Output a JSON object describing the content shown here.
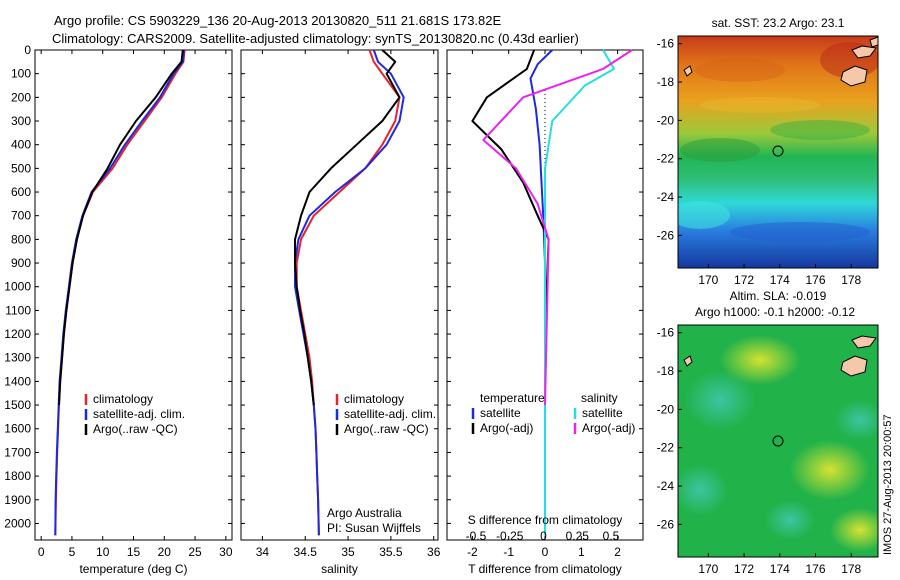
{
  "header": {
    "line1": "Argo profile: CS 5903229_136 20-Aug-2013 20130820_511 21.681S 173.82E",
    "line2": "Climatology: CARS2009. Satellite-adjusted climatology: synTS_20130820.nc (0.43d earlier)"
  },
  "side_text": "IMOS 27-Aug-2013 20:00:57",
  "colors": {
    "climatology": "#e8212e",
    "satellite": "#1b2ae0",
    "argo": "#000000",
    "sat_salinity": "#22e0e0",
    "argo_salinity": "#ee22ee"
  },
  "chart_data": [
    {
      "id": "temperature",
      "type": "line",
      "xlabel": "temperature (deg C)",
      "ylabel": "",
      "xlim": [
        -1,
        31
      ],
      "ylim": [
        2070,
        0
      ],
      "xticks": [
        "0",
        "5",
        "10",
        "15",
        "20",
        "25",
        "30"
      ],
      "xtick_values": [
        0,
        5,
        10,
        15,
        20,
        25,
        30
      ],
      "yticks": [
        "0",
        "100",
        "200",
        "300",
        "400",
        "500",
        "600",
        "700",
        "800",
        "900",
        "1000",
        "1100",
        "1200",
        "1300",
        "1400",
        "1500",
        "1600",
        "1700",
        "1800",
        "1900",
        "2000"
      ],
      "ytick_values": [
        0,
        100,
        200,
        300,
        400,
        500,
        600,
        700,
        800,
        900,
        1000,
        1100,
        1200,
        1300,
        1400,
        1500,
        1600,
        1700,
        1800,
        1900,
        2000
      ],
      "legend": [
        "climatology",
        "satellite-adj. clim.",
        "Argo(..raw -QC)"
      ],
      "series": [
        {
          "name": "climatology",
          "color": "#e8212e",
          "x": [
            23.3,
            23.1,
            21.8,
            19.6,
            16.8,
            14.0,
            11.6,
            8.4,
            6.8,
            5.8,
            5.1,
            4.6,
            4.1,
            3.7,
            3.4,
            3.1,
            2.9,
            2.75,
            2.6,
            2.5,
            2.4,
            2.3
          ],
          "y": [
            0,
            50,
            100,
            200,
            300,
            400,
            500,
            600,
            700,
            800,
            900,
            1000,
            1100,
            1200,
            1300,
            1400,
            1500,
            1600,
            1700,
            1800,
            1900,
            2050
          ]
        },
        {
          "name": "satellite-adj. clim.",
          "color": "#1b2ae0",
          "x": [
            23.2,
            23.0,
            21.5,
            19.3,
            16.4,
            13.6,
            11.2,
            8.2,
            6.7,
            5.7,
            5.0,
            4.5,
            4.0,
            3.6,
            3.3,
            3.0,
            2.85,
            2.7,
            2.55,
            2.45,
            2.35,
            2.3
          ],
          "y": [
            0,
            50,
            100,
            200,
            300,
            400,
            500,
            600,
            700,
            800,
            900,
            1000,
            1100,
            1200,
            1300,
            1400,
            1500,
            1600,
            1700,
            1800,
            1900,
            2050
          ]
        },
        {
          "name": "Argo(..raw -QC)",
          "color": "#000000",
          "x": [
            23.0,
            22.8,
            21.2,
            18.6,
            15.4,
            12.8,
            10.8,
            8.3,
            6.8,
            5.8,
            5.1,
            4.6,
            4.1,
            3.7,
            3.4,
            3.1,
            2.9
          ],
          "y": [
            0,
            50,
            100,
            200,
            300,
            400,
            500,
            600,
            700,
            800,
            900,
            1000,
            1100,
            1200,
            1300,
            1400,
            1500
          ]
        }
      ]
    },
    {
      "id": "salinity",
      "type": "line",
      "xlabel": "salinity",
      "xlim": [
        33.75,
        36.05
      ],
      "ylim": [
        2070,
        0
      ],
      "xticks": [
        "34",
        "34.5",
        "35",
        "35.5",
        "36"
      ],
      "xtick_values": [
        34,
        34.5,
        35,
        35.5,
        36
      ],
      "legend": [
        "climatology",
        "satellite-adj. clim.",
        "Argo(..raw -QC)"
      ],
      "annotation": [
        "Argo Australia",
        "PI: Susan Wijffels"
      ],
      "series": [
        {
          "name": "climatology",
          "color": "#e8212e",
          "x": [
            35.25,
            35.3,
            35.4,
            35.6,
            35.55,
            35.4,
            35.2,
            34.9,
            34.6,
            34.45,
            34.4,
            34.4,
            34.45,
            34.5,
            34.55,
            34.58,
            34.6,
            34.62,
            34.63,
            34.64,
            34.65,
            34.66
          ],
          "y": [
            0,
            50,
            100,
            200,
            300,
            400,
            500,
            600,
            700,
            800,
            900,
            1000,
            1100,
            1200,
            1300,
            1400,
            1500,
            1600,
            1700,
            1800,
            1900,
            2050
          ]
        },
        {
          "name": "satellite-adj. clim.",
          "color": "#1b2ae0",
          "x": [
            35.3,
            35.35,
            35.5,
            35.65,
            35.6,
            35.45,
            35.2,
            34.85,
            34.55,
            34.42,
            34.38,
            34.38,
            34.43,
            34.48,
            34.53,
            34.57,
            34.6,
            34.62,
            34.63,
            34.64,
            34.65,
            34.66
          ],
          "y": [
            0,
            50,
            100,
            200,
            300,
            400,
            500,
            600,
            700,
            800,
            900,
            1000,
            1100,
            1200,
            1300,
            1400,
            1500,
            1600,
            1700,
            1800,
            1900,
            2050
          ]
        },
        {
          "name": "Argo(..raw -QC)",
          "color": "#000000",
          "x": [
            35.4,
            35.55,
            35.45,
            35.6,
            35.4,
            35.1,
            34.8,
            34.55,
            34.45,
            34.38,
            34.38,
            34.4,
            34.44,
            34.49,
            34.53,
            34.57,
            34.6
          ],
          "y": [
            0,
            50,
            100,
            200,
            300,
            400,
            500,
            600,
            700,
            800,
            900,
            1000,
            1100,
            1200,
            1300,
            1400,
            1500
          ]
        }
      ]
    },
    {
      "id": "difference",
      "type": "line",
      "xlabel": "T difference from climatology",
      "xlabel_top": "S difference from climatology",
      "xlim": [
        -2.7,
        2.7
      ],
      "ylim": [
        2070,
        0
      ],
      "xticks": [
        "-2",
        "-1",
        "0",
        "1",
        "2"
      ],
      "xtick_values": [
        -2,
        -1,
        0,
        1,
        2
      ],
      "sticks": [
        "-0.5",
        "-0.25",
        "0",
        "0.25",
        "0.5"
      ],
      "stick_values": [
        -0.5,
        -0.25,
        0,
        0.25,
        0.5
      ],
      "legend_left": [
        "temperature",
        "satellite",
        "Argo(-adj)"
      ],
      "legend_right": [
        "salinity",
        "satellite",
        "Argo(-adj)"
      ],
      "series": [
        {
          "name": "satellite",
          "color": "#1b2ae0",
          "x": [
            0.2,
            -0.2,
            -0.4,
            -0.25,
            -0.15,
            -0.1,
            -0.05,
            0,
            0,
            0
          ],
          "y": [
            0,
            60,
            120,
            250,
            400,
            550,
            700,
            900,
            1200,
            2050
          ]
        },
        {
          "name": "Argo(-adj)",
          "color": "#000000",
          "x": [
            -0.3,
            -0.5,
            -1.6,
            -2.0,
            -1.2,
            -0.6,
            -0.2,
            0.1,
            0,
            0
          ],
          "y": [
            0,
            80,
            200,
            300,
            420,
            560,
            700,
            800,
            1200,
            1500
          ]
        },
        {
          "name": "satellite",
          "color": "#22e0e0",
          "x": [
            1.6,
            1.9,
            1.1,
            0.2,
            0.0,
            0.0,
            0.0,
            0.0
          ],
          "y": [
            0,
            80,
            150,
            300,
            500,
            800,
            1200,
            2050
          ]
        },
        {
          "name": "Argo(-adj)",
          "color": "#ee22ee",
          "x": [
            2.4,
            1.6,
            -0.6,
            -1.7,
            -0.8,
            -0.2,
            0.1,
            0.0
          ],
          "y": [
            0,
            80,
            200,
            380,
            500,
            650,
            800,
            1500
          ]
        }
      ]
    },
    {
      "id": "sst_map",
      "type": "heatmap",
      "title": "sat. SST: 23.2  Argo: 23.1",
      "xlim": [
        168.3,
        179.5
      ],
      "ylim": [
        -27.7,
        -15.6
      ],
      "xticks": [
        "170",
        "172",
        "174",
        "176",
        "178"
      ],
      "xtick_values": [
        170,
        172,
        174,
        176,
        178
      ],
      "yticks": [
        "-16",
        "-18",
        "-20",
        "-22",
        "-24",
        "-26"
      ],
      "ytick_values": [
        -16,
        -18,
        -20,
        -22,
        -24,
        -26
      ],
      "marker": [
        173.82,
        -21.681
      ]
    },
    {
      "id": "sla_map",
      "type": "heatmap",
      "title": "Altim. SLA: -0.019",
      "subtitle": "Argo h1000: -0.1  h2000: -0.12",
      "xlim": [
        168.3,
        179.5
      ],
      "ylim": [
        -27.7,
        -15.6
      ],
      "xticks": [
        "170",
        "172",
        "174",
        "176",
        "178"
      ],
      "xtick_values": [
        170,
        172,
        174,
        176,
        178
      ],
      "yticks": [
        "-16",
        "-18",
        "-20",
        "-22",
        "-24",
        "-26"
      ],
      "ytick_values": [
        -16,
        -18,
        -20,
        -22,
        -24,
        -26
      ],
      "marker": [
        173.82,
        -21.681
      ]
    }
  ]
}
